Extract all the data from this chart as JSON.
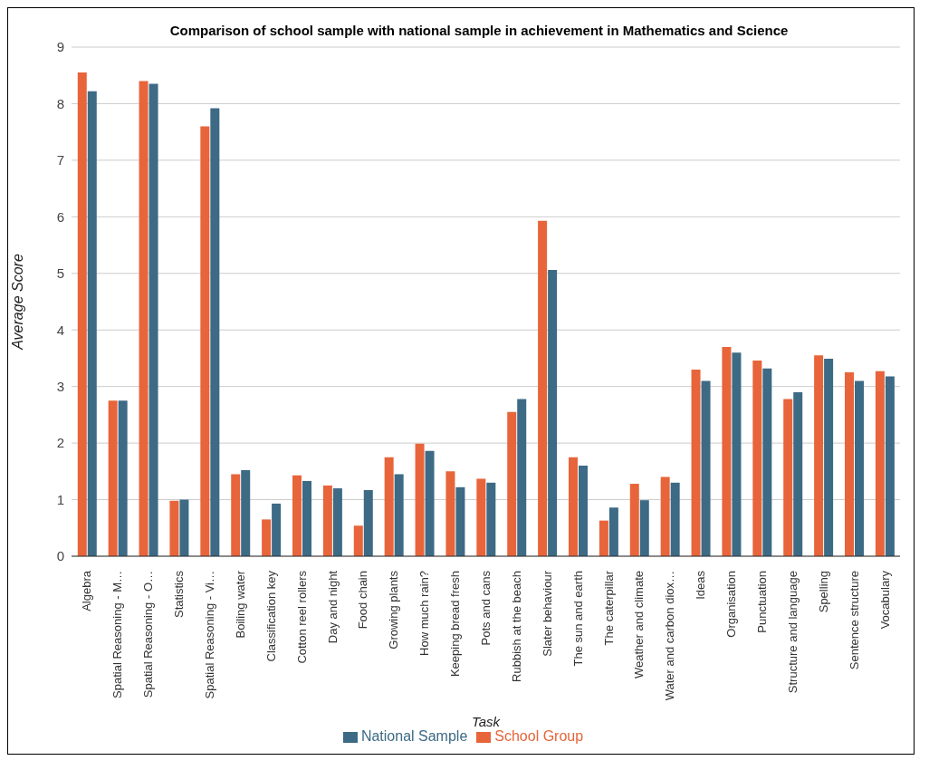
{
  "chart_data": {
    "type": "bar",
    "title": "Comparison of school sample with national sample in achievement in Mathematics and Science",
    "xlabel": "Task",
    "ylabel": "Average Score",
    "categories": [
      "Algebra",
      "Spatial Reasoning - M…",
      "Spatial Reasoning - O…",
      "Statistics",
      "Spatial Reasoning - Vi…",
      "Boiling water",
      "Classification key",
      "Cotton reel rollers",
      "Day and night",
      "Food chain",
      "Growing plants",
      "How much rain?",
      "Keeping bread fresh",
      "Pots and cans",
      "Rubbish at the beach",
      "Slater behaviour",
      "The sun and earth",
      "The caterpillar",
      "Weather and climate",
      "Water and carbon diox…",
      "Ideas",
      "Organisation",
      "Punctuation",
      "Structure and language",
      "Spelling",
      "Sentence structure",
      "Vocabulary"
    ],
    "series": [
      {
        "name": "School Group",
        "color": "#e8643a",
        "values": [
          8.55,
          2.75,
          8.4,
          0.98,
          7.6,
          1.45,
          0.65,
          1.43,
          1.25,
          0.54,
          1.75,
          1.99,
          1.5,
          1.37,
          2.55,
          5.93,
          1.75,
          0.63,
          1.28,
          1.4,
          3.3,
          3.7,
          3.46,
          2.78,
          3.55,
          3.25,
          3.27
        ]
      },
      {
        "name": "National Sample",
        "color": "#3d6a85",
        "values": [
          8.22,
          2.75,
          8.35,
          1.0,
          7.92,
          1.52,
          0.93,
          1.33,
          1.2,
          1.17,
          1.45,
          1.86,
          1.22,
          1.3,
          2.78,
          5.06,
          1.6,
          0.86,
          0.99,
          1.3,
          3.1,
          3.6,
          3.32,
          2.9,
          3.49,
          3.1,
          3.18
        ]
      }
    ],
    "ylim": [
      0,
      9
    ],
    "yticks": [
      0,
      1,
      2,
      3,
      4,
      5,
      6,
      7,
      8,
      9
    ],
    "grid": "y",
    "legend": "bottom"
  }
}
